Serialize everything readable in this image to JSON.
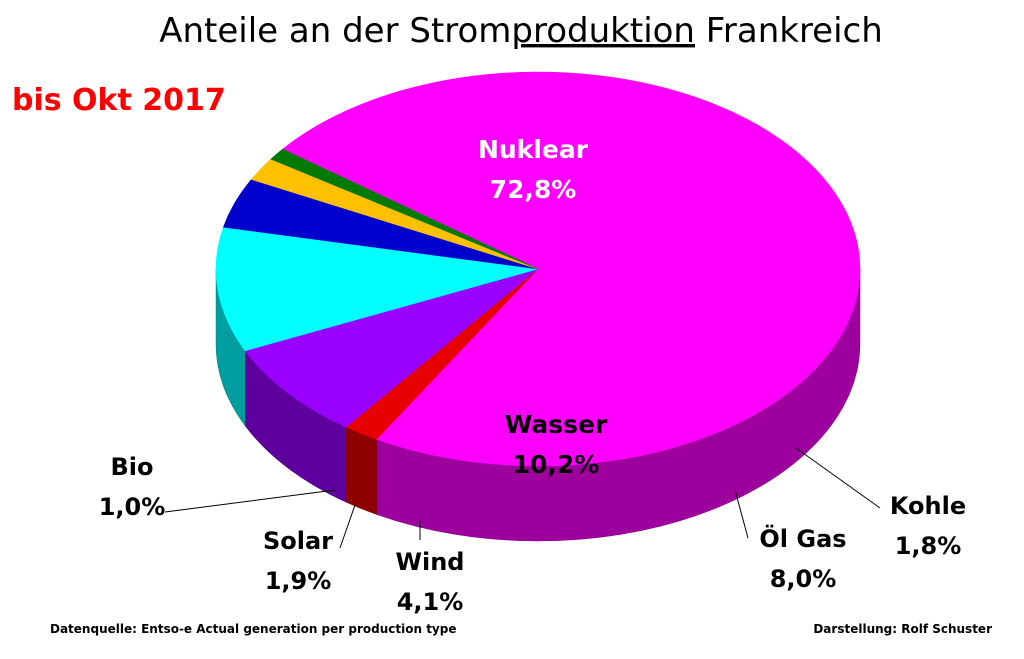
{
  "chart_data": {
    "type": "pie",
    "title_parts": [
      "Anteile an der Strom",
      "produktion",
      " Frankreich"
    ],
    "subtitle": "bis Okt 2017",
    "slices": [
      {
        "key": "nuklear",
        "label": "Nuklear",
        "value": 72.8,
        "display": "72,8%",
        "color": "#ff00ff"
      },
      {
        "key": "kohle",
        "label": "Kohle",
        "value": 1.8,
        "display": "1,8%",
        "color": "#e60000"
      },
      {
        "key": "oelgas",
        "label": "Öl Gas",
        "value": 8.0,
        "display": "8,0%",
        "color": "#9900ff"
      },
      {
        "key": "wasser",
        "label": "Wasser",
        "value": 10.2,
        "display": "10,2%",
        "color": "#00ffff"
      },
      {
        "key": "wind",
        "label": "Wind",
        "value": 4.1,
        "display": "4,1%",
        "color": "#0000cc"
      },
      {
        "key": "solar",
        "label": "Solar",
        "value": 1.9,
        "display": "1,9%",
        "color": "#ffc000"
      },
      {
        "key": "bio",
        "label": "Bio",
        "value": 1.0,
        "display": "1,0%",
        "color": "#007a00"
      }
    ],
    "colors": {
      "subtitle": "#ff0000",
      "inner_label_light": "#ffffff"
    }
  },
  "footer": {
    "source": "Datenquelle: Entso-e  Actual generation per production  type",
    "credit": "Darstellung: Rolf Schuster"
  }
}
